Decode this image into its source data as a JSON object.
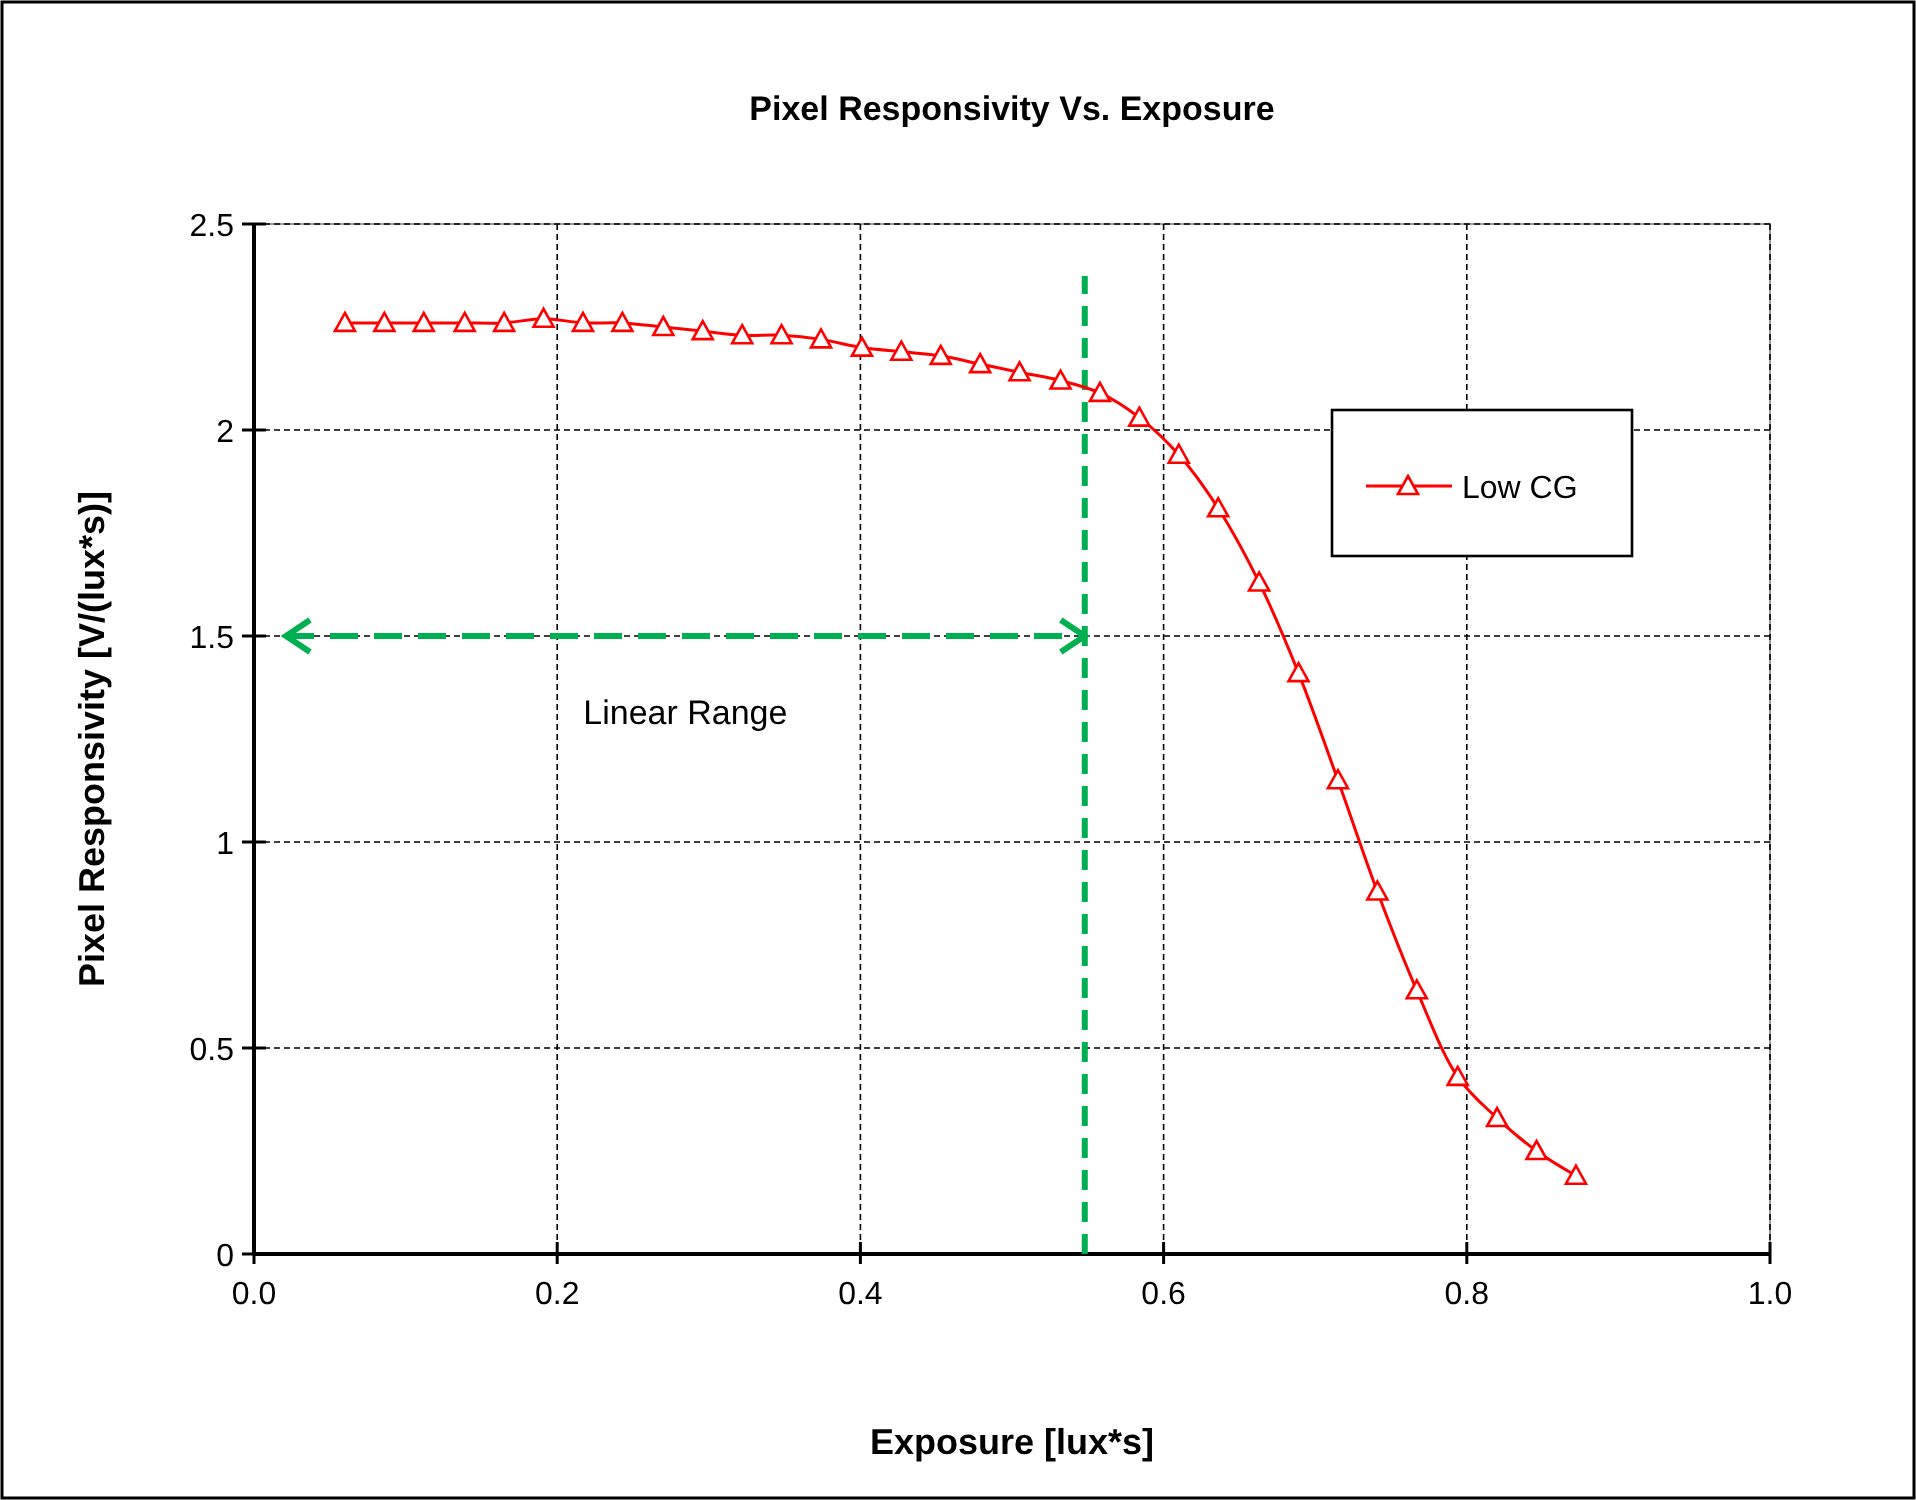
{
  "chart_data": {
    "type": "line",
    "title": "Pixel Responsivity Vs. Exposure",
    "xlabel": "Exposure [lux*s]",
    "ylabel": "Pixel Responsivity [V/(lux*s)]",
    "x": [
      0.06,
      0.086,
      0.112,
      0.139,
      0.165,
      0.191,
      0.217,
      0.243,
      0.27,
      0.296,
      0.322,
      0.348,
      0.374,
      0.401,
      0.427,
      0.453,
      0.479,
      0.505,
      0.532,
      0.558,
      0.584,
      0.61,
      0.636,
      0.663,
      0.689,
      0.715,
      0.741,
      0.767,
      0.794,
      0.82,
      0.846,
      0.872
    ],
    "series": [
      {
        "name": "Low CG",
        "color": "#ff0000",
        "values": [
          2.26,
          2.26,
          2.26,
          2.26,
          2.26,
          2.27,
          2.26,
          2.26,
          2.25,
          2.24,
          2.23,
          2.23,
          2.22,
          2.2,
          2.19,
          2.18,
          2.16,
          2.14,
          2.12,
          2.09,
          2.03,
          1.94,
          1.81,
          1.63,
          1.41,
          1.15,
          0.88,
          0.64,
          0.43,
          0.33,
          0.25,
          0.19
        ]
      }
    ],
    "marker": "triangle",
    "line_style": "solid",
    "grid": true,
    "legend": "right",
    "xlim": [
      0,
      1
    ],
    "ylim": [
      0,
      2.5
    ],
    "xticks": [
      {
        "value": 0,
        "label": "0.0"
      },
      {
        "value": 0.2,
        "label": "0.2"
      },
      {
        "value": 0.4,
        "label": "0.4"
      },
      {
        "value": 0.6,
        "label": "0.6"
      },
      {
        "value": 0.8,
        "label": "0.8"
      },
      {
        "value": 1,
        "label": "1.0"
      }
    ],
    "yticks": [
      0,
      0.5,
      1,
      1.5,
      2,
      2.5
    ],
    "ref_lines": [
      {
        "axis": "x",
        "value": 0.548,
        "color": "#00b050",
        "line_style": "dashed"
      },
      {
        "axis": "y",
        "value": 1.5,
        "label": "Linear Range",
        "color": "#00b050",
        "line_style": "dashed"
      }
    ]
  }
}
